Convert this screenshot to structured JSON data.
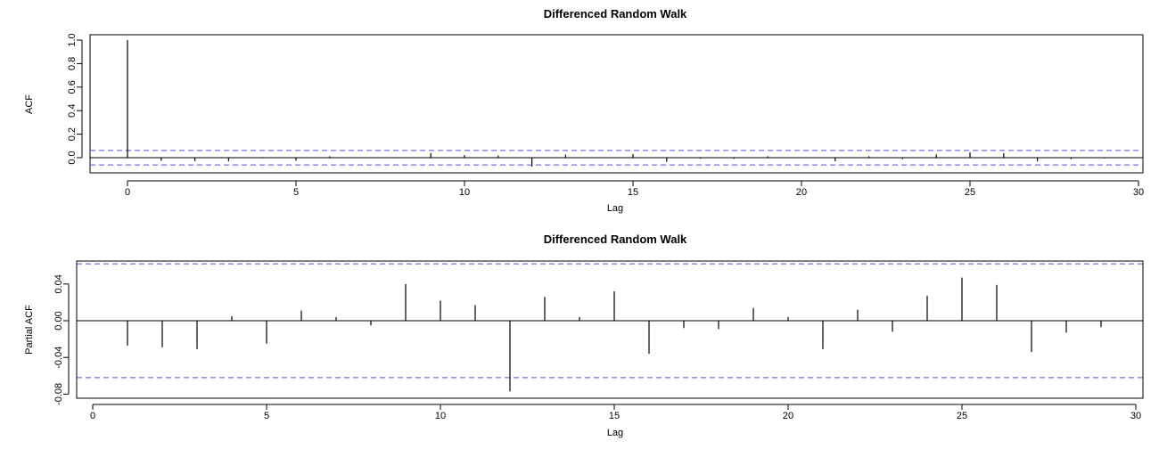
{
  "chart_data": [
    {
      "type": "bar",
      "title": "Differenced Random Walk",
      "xlabel": "Lag",
      "ylabel": "ACF",
      "xlim": [
        -1,
        30
      ],
      "ylim": [
        -0.06,
        1.0
      ],
      "xticks": [
        0,
        5,
        10,
        15,
        20,
        25,
        30
      ],
      "xtick_labels": [
        "0",
        "5",
        "10",
        "15",
        "20",
        "25",
        "30"
      ],
      "yticks": [
        0.0,
        0.2,
        0.4,
        0.6,
        0.8,
        1.0
      ],
      "ytick_labels": [
        "0.0",
        "0.2",
        "0.4",
        "0.6",
        "0.8",
        "1.0"
      ],
      "confidence_bound": 0.062,
      "confidence_color": "#4f4fd6",
      "grid": false,
      "lags": [
        0,
        1,
        2,
        3,
        4,
        5,
        6,
        7,
        8,
        9,
        10,
        11,
        12,
        13,
        14,
        15,
        16,
        17,
        18,
        19,
        20,
        21,
        22,
        23,
        24,
        25,
        26,
        27,
        28,
        29
      ],
      "values": [
        1.0,
        -0.027,
        -0.029,
        -0.031,
        0.005,
        -0.025,
        0.012,
        0.004,
        -0.005,
        0.04,
        0.022,
        0.018,
        -0.076,
        0.026,
        0.004,
        0.031,
        -0.035,
        -0.008,
        -0.009,
        0.012,
        0.003,
        -0.031,
        0.012,
        -0.012,
        0.028,
        0.046,
        0.039,
        -0.032,
        -0.012,
        -0.006
      ]
    },
    {
      "type": "bar",
      "title": "Differenced Random Walk",
      "xlabel": "Lag",
      "ylabel": "Partial ACF",
      "xlim": [
        0,
        30
      ],
      "ylim": [
        -0.077,
        0.063
      ],
      "xticks": [
        0,
        5,
        10,
        15,
        20,
        25,
        30
      ],
      "xtick_labels": [
        "0",
        "5",
        "10",
        "15",
        "20",
        "25",
        "30"
      ],
      "yticks": [
        -0.08,
        -0.04,
        0.0,
        0.04
      ],
      "ytick_labels": [
        "-0.08",
        "-0.04",
        "0.00",
        "0.04"
      ],
      "confidence_bound": 0.062,
      "confidence_color": "#4f4fd6",
      "grid": false,
      "lags": [
        1,
        2,
        3,
        4,
        5,
        6,
        7,
        8,
        9,
        10,
        11,
        12,
        13,
        14,
        15,
        16,
        17,
        18,
        19,
        20,
        21,
        22,
        23,
        24,
        25,
        26,
        27,
        28,
        29
      ],
      "values": [
        -0.027,
        -0.029,
        -0.031,
        0.005,
        -0.025,
        0.011,
        0.004,
        -0.005,
        0.04,
        0.022,
        0.017,
        -0.077,
        0.026,
        0.004,
        0.032,
        -0.036,
        -0.008,
        -0.009,
        0.014,
        0.004,
        -0.031,
        0.012,
        -0.012,
        0.027,
        0.047,
        0.039,
        -0.034,
        -0.013,
        -0.007
      ]
    }
  ]
}
